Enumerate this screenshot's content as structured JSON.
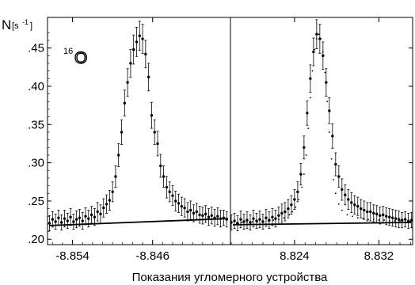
{
  "chart_data": {
    "type": "scatter",
    "ylabel_main": "N",
    "ylabel_unit": "[s",
    "ylabel_exp": "-1",
    "ylabel_close": "]",
    "xlabel": "Показания угломерного устройства",
    "annotation_mass": "16",
    "annotation_element": "O",
    "ylim": [
      0.193,
      0.49
    ],
    "yticks": [
      ".20",
      ".25",
      ".30",
      ".35",
      ".40",
      ".45"
    ],
    "ytick_values": [
      0.2,
      0.25,
      0.3,
      0.35,
      0.4,
      0.45
    ],
    "panels": [
      {
        "xlim": [
          -8.8565,
          -8.8383
        ],
        "xticks": [
          "-8.854",
          "-8.846"
        ],
        "xtick_values": [
          -8.854,
          -8.846
        ],
        "series": [
          {
            "name": "",
            "marker": "dot-errorbar",
            "x": [
              -8.8563,
              -8.856,
              -8.8557,
              -8.8554,
              -8.8551,
              -8.8548,
              -8.8545,
              -8.8542,
              -8.8539,
              -8.8536,
              -8.8533,
              -8.853,
              -8.8527,
              -8.8524,
              -8.8521,
              -8.8518,
              -8.8515,
              -8.8512,
              -8.8509,
              -8.8506,
              -8.8503,
              -8.85,
              -8.8497,
              -8.8494,
              -8.8491,
              -8.8488,
              -8.8485,
              -8.8482,
              -8.8479,
              -8.8476,
              -8.8473,
              -8.847,
              -8.8467,
              -8.8464,
              -8.8461,
              -8.8458,
              -8.8455,
              -8.8452,
              -8.8449,
              -8.8446,
              -8.8443,
              -8.844,
              -8.8437,
              -8.8434,
              -8.8431,
              -8.8428,
              -8.8425,
              -8.8422,
              -8.8419,
              -8.8416,
              -8.8413,
              -8.841,
              -8.8407,
              -8.8404,
              -8.8401,
              -8.8398,
              -8.8395,
              -8.8392,
              -8.8389,
              -8.8386
            ],
            "y": [
              0.221,
              0.226,
              0.223,
              0.228,
              0.222,
              0.227,
              0.224,
              0.229,
              0.223,
              0.226,
              0.228,
              0.224,
              0.23,
              0.227,
              0.232,
              0.229,
              0.236,
              0.233,
              0.241,
              0.246,
              0.251,
              0.262,
              0.282,
              0.31,
              0.34,
              0.378,
              0.405,
              0.43,
              0.448,
              0.458,
              0.466,
              0.462,
              0.442,
              0.412,
              0.362,
              0.34,
              0.325,
              0.296,
              0.282,
              0.268,
              0.262,
              0.257,
              0.25,
              0.247,
              0.243,
              0.241,
              0.236,
              0.238,
              0.234,
              0.236,
              0.232,
              0.231,
              0.233,
              0.229,
              0.231,
              0.228,
              0.23,
              0.227,
              0.228,
              0.226
            ],
            "err": [
              0.01,
              0.01,
              0.01,
              0.01,
              0.01,
              0.011,
              0.01,
              0.011,
              0.01,
              0.011,
              0.011,
              0.011,
              0.011,
              0.011,
              0.011,
              0.011,
              0.012,
              0.012,
              0.012,
              0.012,
              0.013,
              0.013,
              0.014,
              0.015,
              0.016,
              0.017,
              0.018,
              0.018,
              0.019,
              0.019,
              0.019,
              0.019,
              0.018,
              0.018,
              0.017,
              0.016,
              0.016,
              0.015,
              0.014,
              0.014,
              0.013,
              0.013,
              0.013,
              0.012,
              0.012,
              0.012,
              0.012,
              0.012,
              0.011,
              0.011,
              0.011,
              0.011,
              0.011,
              0.011,
              0.011,
              0.011,
              0.011,
              0.011,
              0.01,
              0.01
            ]
          },
          {
            "name": "",
            "marker": "line",
            "x": [
              -8.8565,
              -8.8383
            ],
            "y": [
              0.218,
              0.227
            ]
          }
        ]
      },
      {
        "xlim": [
          -8.8197,
          8.8352
        ],
        "xticks": [
          "8.824",
          "8.832"
        ],
        "xtick_values": [
          8.824,
          8.832
        ],
        "series": [
          {
            "name": "",
            "marker": "dot-errorbar",
            "x": [
              8.818,
              8.8183,
              8.8186,
              8.8189,
              8.8192,
              8.8195,
              8.8198,
              8.8201,
              8.8204,
              8.8207,
              8.821,
              8.8213,
              8.8216,
              8.8219,
              8.8222,
              8.8225,
              8.8228,
              8.8231,
              8.8234,
              8.8237,
              8.824,
              8.8243,
              8.8246,
              8.8249,
              8.8252,
              8.8255,
              8.8258,
              8.8261,
              8.8264,
              8.8267,
              8.827,
              8.8273,
              8.8276,
              8.8279,
              8.8282,
              8.8285,
              8.8288,
              8.8291,
              8.8294,
              8.8297,
              8.83,
              8.8303,
              8.8306,
              8.8309,
              8.8312,
              8.8315,
              8.8318,
              8.8321,
              8.8324,
              8.8327,
              8.833,
              8.8333,
              8.8336,
              8.8339,
              8.8342,
              8.8345,
              8.8348,
              8.8351
            ],
            "y": [
              0.222,
              0.224,
              0.221,
              0.226,
              0.223,
              0.225,
              0.222,
              0.227,
              0.224,
              0.226,
              0.223,
              0.228,
              0.225,
              0.229,
              0.227,
              0.231,
              0.234,
              0.236,
              0.24,
              0.245,
              0.252,
              0.262,
              0.285,
              0.32,
              0.365,
              0.41,
              0.445,
              0.468,
              0.462,
              0.44,
              0.405,
              0.368,
              0.335,
              0.298,
              0.282,
              0.265,
              0.258,
              0.252,
              0.248,
              0.245,
              0.243,
              0.24,
              0.238,
              0.236,
              0.236,
              0.234,
              0.233,
              0.231,
              0.232,
              0.23,
              0.229,
              0.228,
              0.227,
              0.226,
              0.225,
              0.226,
              0.224,
              0.225
            ],
            "err": [
              0.01,
              0.01,
              0.01,
              0.011,
              0.01,
              0.011,
              0.01,
              0.011,
              0.01,
              0.011,
              0.01,
              0.011,
              0.011,
              0.011,
              0.011,
              0.011,
              0.012,
              0.012,
              0.012,
              0.012,
              0.013,
              0.013,
              0.014,
              0.015,
              0.016,
              0.018,
              0.018,
              0.019,
              0.019,
              0.018,
              0.018,
              0.017,
              0.016,
              0.015,
              0.014,
              0.014,
              0.013,
              0.013,
              0.013,
              0.012,
              0.012,
              0.012,
              0.012,
              0.012,
              0.012,
              0.011,
              0.011,
              0.011,
              0.011,
              0.011,
              0.011,
              0.011,
              0.011,
              0.011,
              0.01,
              0.01,
              0.01,
              0.01
            ]
          },
          {
            "name": "",
            "marker": "fit-dots",
            "x": [
              8.8185,
              8.819,
              8.8195,
              8.82,
              8.8205,
              8.821,
              8.8215,
              8.822,
              8.8225,
              8.823,
              8.8235,
              8.8238,
              8.8241,
              8.8244,
              8.8247,
              8.8249,
              8.8251,
              8.8253,
              8.8255,
              8.8257,
              8.8259,
              8.8261,
              8.8263,
              8.8265,
              8.8267,
              8.8269,
              8.8271,
              8.8273,
              8.8275,
              8.8277,
              8.8279,
              8.8282,
              8.8285,
              8.829,
              8.8295,
              8.83,
              8.8305,
              8.831,
              8.8315,
              8.832,
              8.8325,
              8.833,
              8.8335,
              8.834,
              8.8345,
              8.835
            ],
            "y": [
              0.221,
              0.222,
              0.222,
              0.223,
              0.223,
              0.224,
              0.224,
              0.225,
              0.226,
              0.228,
              0.232,
              0.236,
              0.242,
              0.252,
              0.268,
              0.285,
              0.31,
              0.345,
              0.385,
              0.42,
              0.448,
              0.462,
              0.468,
              0.462,
              0.445,
              0.418,
              0.38,
              0.34,
              0.305,
              0.278,
              0.26,
              0.246,
              0.238,
              0.232,
              0.23,
              0.228,
              0.227,
              0.226,
              0.226,
              0.225,
              0.225,
              0.224,
              0.224,
              0.224,
              0.223,
              0.223
            ]
          },
          {
            "name": "",
            "marker": "line",
            "x": [
              -8.8197,
              8.8352
            ],
            "y": [
              0.219,
              0.222
            ]
          }
        ]
      }
    ]
  }
}
